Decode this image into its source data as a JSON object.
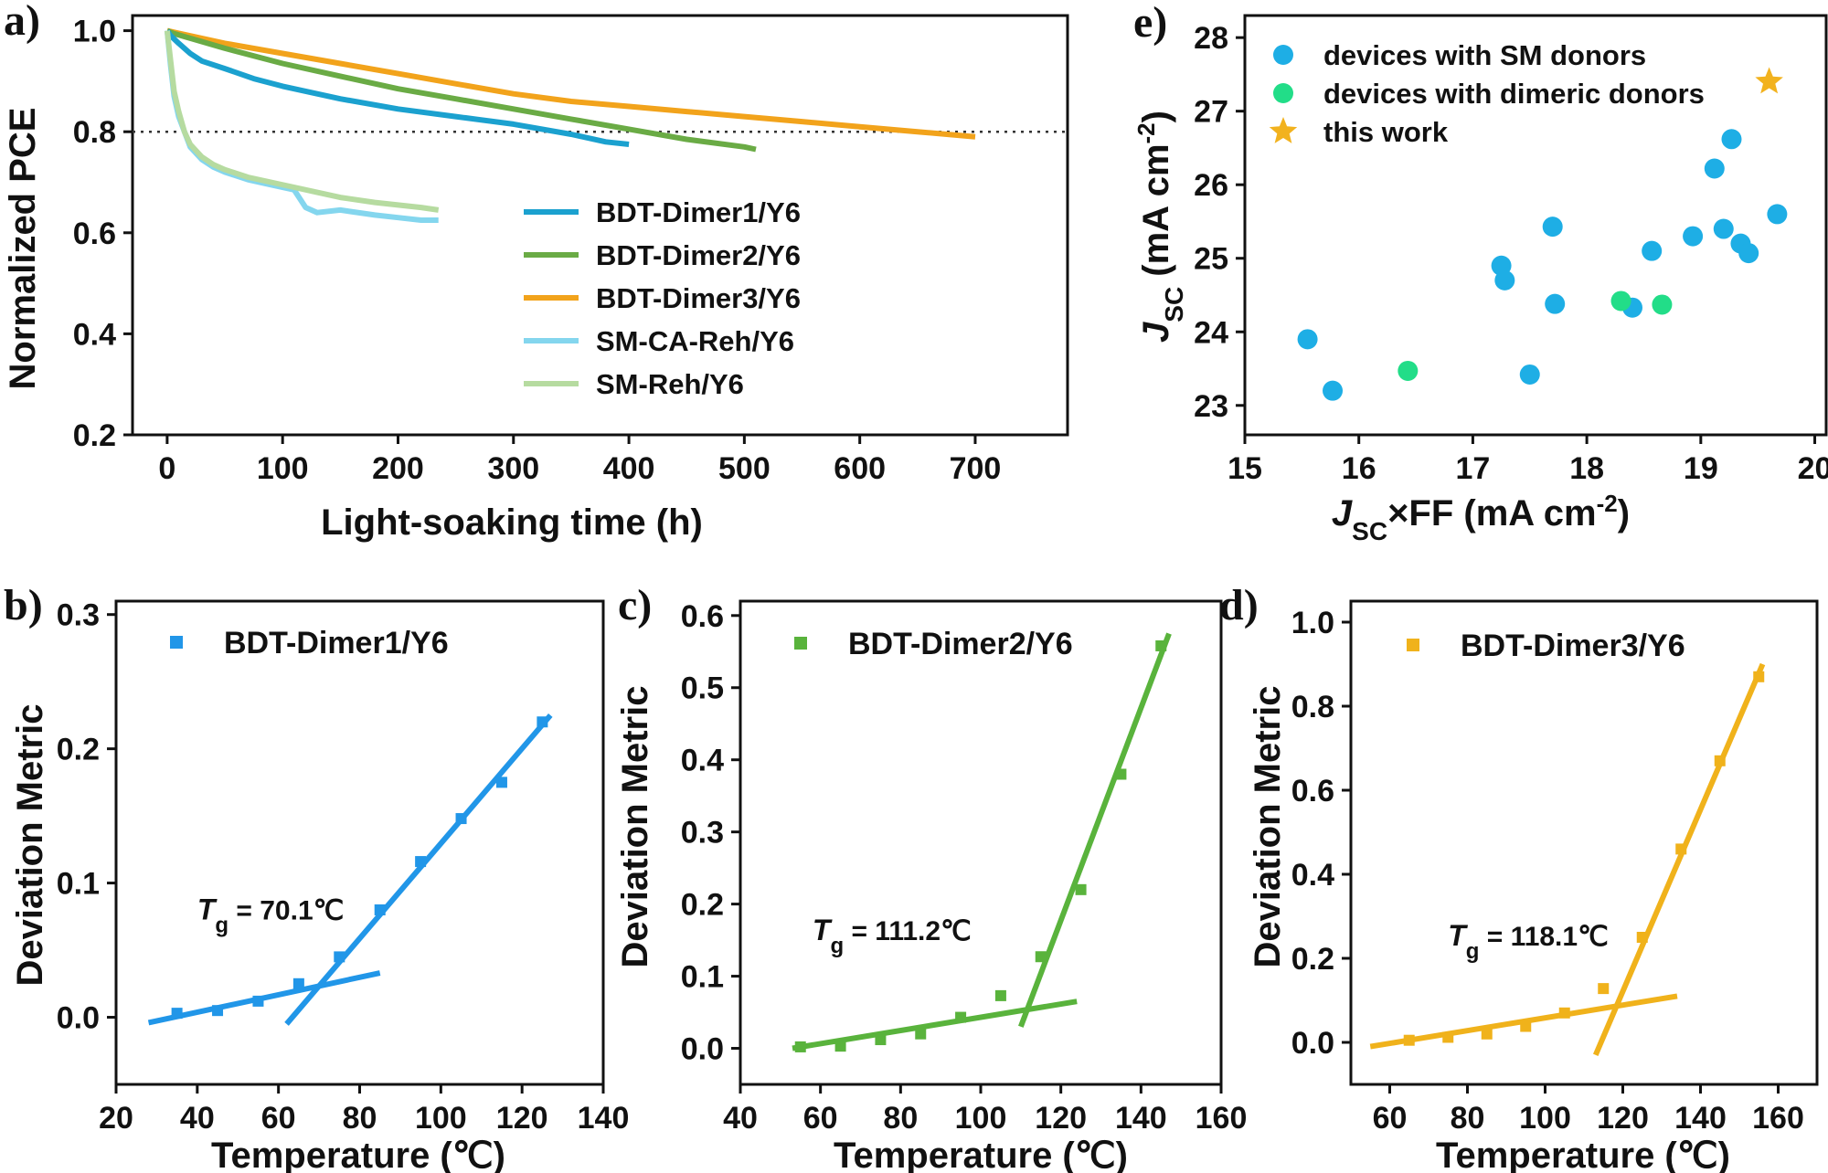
{
  "chart_data": [
    {
      "panel": "a)",
      "type": "line",
      "xlabel": "Light-soaking time (h)",
      "ylabel": "Normalized PCE",
      "xlim": [
        -30,
        780
      ],
      "ylim": [
        0.2,
        1.03
      ],
      "xticks": [
        0,
        100,
        200,
        300,
        400,
        500,
        600,
        700
      ],
      "yticks": [
        0.2,
        0.4,
        0.6,
        0.8,
        1.0
      ],
      "ytick_labels": [
        "0.2",
        "0.4",
        "0.6",
        "0.8",
        "1.0"
      ],
      "reference_line_y": 0.8,
      "legend_position": "center-right",
      "series": [
        {
          "name": "BDT-Dimer1/Y6",
          "color": "#1ba1cf",
          "x": [
            0,
            3,
            10,
            20,
            30,
            50,
            75,
            100,
            150,
            200,
            250,
            300,
            350,
            380,
            400
          ],
          "y": [
            1.0,
            0.99,
            0.975,
            0.955,
            0.94,
            0.925,
            0.905,
            0.89,
            0.865,
            0.845,
            0.83,
            0.815,
            0.795,
            0.78,
            0.775
          ]
        },
        {
          "name": "BDT-Dimer2/Y6",
          "color": "#6aab45",
          "x": [
            0,
            5,
            20,
            50,
            100,
            150,
            200,
            250,
            300,
            350,
            400,
            450,
            500,
            510
          ],
          "y": [
            1.0,
            0.995,
            0.985,
            0.965,
            0.935,
            0.91,
            0.885,
            0.865,
            0.845,
            0.825,
            0.805,
            0.785,
            0.77,
            0.765
          ]
        },
        {
          "name": "BDT-Dimer3/Y6",
          "color": "#f2a31b",
          "x": [
            0,
            10,
            50,
            100,
            150,
            200,
            250,
            300,
            350,
            400,
            450,
            500,
            550,
            600,
            650,
            700
          ],
          "y": [
            1.0,
            0.995,
            0.975,
            0.955,
            0.935,
            0.915,
            0.895,
            0.875,
            0.86,
            0.85,
            0.84,
            0.83,
            0.82,
            0.81,
            0.8,
            0.79
          ]
        },
        {
          "name": "SM-CA-Reh/Y6",
          "color": "#84d6ee",
          "x": [
            0,
            3,
            6,
            10,
            15,
            20,
            30,
            40,
            50,
            70,
            90,
            110,
            120,
            130,
            150,
            180,
            200,
            220,
            235
          ],
          "y": [
            1.0,
            0.93,
            0.87,
            0.83,
            0.8,
            0.77,
            0.745,
            0.73,
            0.72,
            0.705,
            0.695,
            0.685,
            0.65,
            0.64,
            0.645,
            0.635,
            0.63,
            0.625,
            0.625
          ]
        },
        {
          "name": "SM-Reh/Y6",
          "color": "#b6dba0",
          "x": [
            0,
            3,
            6,
            10,
            15,
            20,
            30,
            40,
            50,
            70,
            90,
            110,
            130,
            150,
            180,
            200,
            220,
            235
          ],
          "y": [
            1.0,
            0.94,
            0.88,
            0.84,
            0.8,
            0.775,
            0.75,
            0.735,
            0.725,
            0.71,
            0.7,
            0.69,
            0.68,
            0.67,
            0.66,
            0.655,
            0.65,
            0.645
          ]
        }
      ]
    },
    {
      "panel": "b)",
      "type": "scatter",
      "xlabel": "Temperature (℃)",
      "ylabel": "Deviation Metric",
      "xlim": [
        20,
        140
      ],
      "ylim": [
        -0.05,
        0.31
      ],
      "xticks": [
        20,
        40,
        60,
        80,
        100,
        120,
        140
      ],
      "yticks": [
        0.0,
        0.1,
        0.2,
        0.3
      ],
      "ytick_labels": [
        "0.0",
        "0.1",
        "0.2",
        "0.3"
      ],
      "color": "#2196e8",
      "series": [
        {
          "name": "BDT-Dimer1/Y6",
          "x": [
            35,
            45,
            55,
            65,
            75,
            85,
            95,
            105,
            115,
            125
          ],
          "y": [
            0.003,
            0.005,
            0.012,
            0.025,
            0.045,
            0.08,
            0.116,
            0.148,
            0.175,
            0.22
          ]
        }
      ],
      "fit_lines": [
        {
          "x": [
            28,
            85
          ],
          "y": [
            -0.004,
            0.033
          ]
        },
        {
          "x": [
            62,
            127
          ],
          "y": [
            -0.005,
            0.225
          ]
        }
      ],
      "annotation": {
        "symbol": "T",
        "subscript": "g",
        "text": " = 70.1℃",
        "x": 40,
        "y": 0.073
      }
    },
    {
      "panel": "c)",
      "type": "scatter",
      "xlabel": "Temperature (℃)",
      "ylabel": "Deviation Metric",
      "xlim": [
        40,
        160
      ],
      "ylim": [
        -0.05,
        0.62
      ],
      "xticks": [
        40,
        60,
        80,
        100,
        120,
        140,
        160
      ],
      "yticks": [
        0.0,
        0.1,
        0.2,
        0.3,
        0.4,
        0.5,
        0.6
      ],
      "ytick_labels": [
        "0.0",
        "0.1",
        "0.2",
        "0.3",
        "0.4",
        "0.5",
        "0.6"
      ],
      "color": "#59b33c",
      "series": [
        {
          "name": "BDT-Dimer2/Y6",
          "x": [
            55,
            65,
            75,
            85,
            95,
            105,
            115,
            125,
            135,
            145
          ],
          "y": [
            0.002,
            0.003,
            0.012,
            0.02,
            0.043,
            0.073,
            0.127,
            0.22,
            0.38,
            0.558
          ]
        }
      ],
      "fit_lines": [
        {
          "x": [
            53,
            124
          ],
          "y": [
            0.0,
            0.065
          ]
        },
        {
          "x": [
            110,
            147
          ],
          "y": [
            0.03,
            0.575
          ]
        }
      ],
      "annotation": {
        "symbol": "T",
        "subscript": "g",
        "text": " = 111.2℃",
        "x": 58,
        "y": 0.15
      }
    },
    {
      "panel": "d)",
      "type": "scatter",
      "xlabel": "Temperature (℃)",
      "ylabel": "Deviation Metric",
      "xlim": [
        50,
        170
      ],
      "ylim": [
        -0.1,
        1.05
      ],
      "xticks": [
        60,
        80,
        100,
        120,
        140,
        160
      ],
      "yticks": [
        0.0,
        0.2,
        0.4,
        0.6,
        0.8,
        1.0
      ],
      "ytick_labels": [
        "0.0",
        "0.2",
        "0.4",
        "0.6",
        "0.8",
        "1.0"
      ],
      "color": "#f0b21b",
      "series": [
        {
          "name": "BDT-Dimer3/Y6",
          "x": [
            65,
            75,
            85,
            95,
            105,
            115,
            125,
            135,
            145,
            155
          ],
          "y": [
            0.005,
            0.012,
            0.02,
            0.038,
            0.07,
            0.128,
            0.25,
            0.46,
            0.67,
            0.87
          ]
        }
      ],
      "fit_lines": [
        {
          "x": [
            55,
            134
          ],
          "y": [
            -0.01,
            0.11
          ]
        },
        {
          "x": [
            113,
            156
          ],
          "y": [
            -0.03,
            0.9
          ]
        }
      ],
      "annotation": {
        "symbol": "T",
        "subscript": "g",
        "text": " = 118.1℃",
        "x": 75,
        "y": 0.23
      }
    },
    {
      "panel": "e)",
      "type": "scatter",
      "xlabel": "J_SC×FF (mA cm^-2)",
      "ylabel": "J_SC (mA cm^-2)",
      "xlim": [
        15,
        20.1
      ],
      "ylim": [
        22.6,
        28.3
      ],
      "xticks": [
        15,
        16,
        17,
        18,
        19,
        20
      ],
      "yticks": [
        23,
        24,
        25,
        26,
        27,
        28
      ],
      "legend_position": "top-left",
      "series": [
        {
          "name": "devices with SM donors",
          "color": "#1eaee5",
          "marker": "circle",
          "x": [
            15.55,
            15.77,
            17.25,
            17.28,
            17.5,
            17.7,
            17.72,
            18.4,
            18.57,
            18.93,
            19.12,
            19.2,
            19.27,
            19.35,
            19.42,
            19.67
          ],
          "y": [
            23.9,
            23.2,
            24.9,
            24.7,
            23.42,
            25.43,
            24.38,
            24.33,
            25.1,
            25.3,
            26.22,
            25.4,
            26.62,
            25.2,
            25.07,
            25.6
          ]
        },
        {
          "name": "devices with dimeric donors",
          "color": "#22dd88",
          "marker": "circle",
          "x": [
            16.43,
            18.3,
            18.66
          ],
          "y": [
            23.47,
            24.42,
            24.37
          ]
        },
        {
          "name": "this work",
          "color": "#f2b21e",
          "marker": "star",
          "x": [
            19.6
          ],
          "y": [
            27.4
          ]
        }
      ]
    }
  ],
  "labels": {
    "a": "a)",
    "b": "b)",
    "c": "c)",
    "d": "d)",
    "e": "e)",
    "a_xlabel": "Light-soaking time (h)",
    "a_ylabel": "Normalized PCE",
    "temp_xlabel": "Temperature (℃)",
    "dev_ylabel": "Deviation Metric",
    "e_xlabel_j": "J",
    "e_xlabel_sub": "SC",
    "e_xlabel_rest": "×FF (mA cm",
    "e_xlabel_sup": "-2",
    "e_xlabel_close": ")",
    "e_ylabel_j": "J",
    "e_ylabel_sub": "SC",
    "e_ylabel_rest": " (mA cm",
    "e_ylabel_sup": "-2",
    "e_ylabel_close": ")"
  }
}
